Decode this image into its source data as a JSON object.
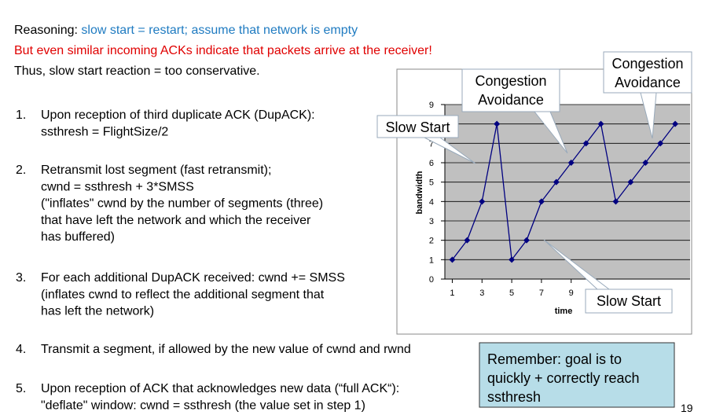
{
  "reasoning": {
    "label": "Reasoning:",
    "text": "slow start = restart; assume that network is empty"
  },
  "warning": "But even similar incoming ACKs indicate that packets arrive at the receiver!",
  "conclusion": "Thus, slow start reaction = too conservative.",
  "items": [
    {
      "number": "1.",
      "lines": [
        "Upon reception of third duplicate ACK (DupACK):",
        "ssthresh = FlightSize/2"
      ]
    },
    {
      "number": "2.",
      "lines": [
        "Retransmit lost segment (fast retransmit);",
        "cwnd = ssthresh + 3*SMSS",
        "(\"inflates\" cwnd by the number of segments (three)",
        "that have left the network and which the receiver",
        "has buffered)"
      ]
    },
    {
      "number": "3.",
      "lines": [
        "For each additional DupACK received: cwnd += SMSS",
        "(inflates cwnd to reflect the additional segment that",
        "has left the network)"
      ]
    },
    {
      "number": "4.",
      "lines": [
        "Transmit a segment, if allowed by the new value of cwnd and rwnd"
      ]
    },
    {
      "number": "5.",
      "lines": [
        "Upon reception of ACK that acknowledges new data (“full ACK“):",
        "\"deflate\" window: cwnd = ssthresh (the value set in step 1)"
      ]
    }
  ],
  "remember": {
    "lines": [
      "Remember: goal is to",
      "quickly + correctly reach",
      "ssthresh"
    ]
  },
  "page_number": "19",
  "chart_data": {
    "type": "line",
    "xlabel": "time",
    "ylabel": "bandwidth",
    "x": [
      1,
      2,
      3,
      4,
      5,
      6,
      7,
      8,
      9,
      10,
      11,
      12,
      13,
      14,
      15,
      16
    ],
    "series": [
      {
        "color": "#000080",
        "values": [
          1,
          2,
          4,
          8,
          1,
          2,
          4,
          5,
          6,
          7,
          8,
          4,
          5,
          6,
          7,
          8
        ]
      }
    ],
    "xlim": [
      0.5,
      17
    ],
    "xticks": [
      1,
      3,
      5,
      7,
      9
    ],
    "ylim": [
      0,
      9
    ],
    "yticks": [
      0,
      1,
      2,
      3,
      4,
      5,
      6,
      7,
      8,
      9
    ],
    "grid": true,
    "background": "#c0c0c0",
    "annotations": [
      {
        "lines": [
          "Congestion",
          "Avoidance"
        ]
      },
      {
        "lines": [
          "Congestion",
          "Avoidance"
        ]
      },
      {
        "lines": [
          "Slow Start"
        ]
      },
      {
        "lines": [
          "Slow Start"
        ]
      }
    ]
  }
}
